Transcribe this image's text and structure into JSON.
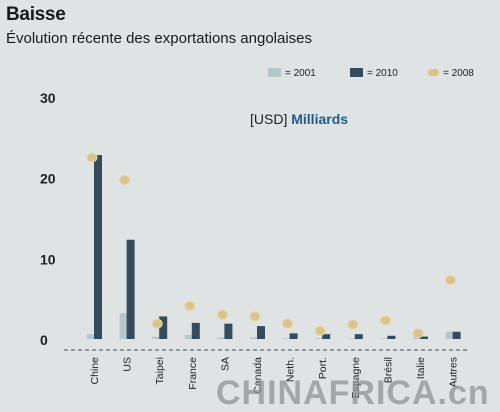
{
  "header": {
    "title": "Baisse",
    "subtitle": "Évolution récente des exportations angolaises"
  },
  "unit_label": {
    "prefix": "[USD]",
    "emphasis": "Milliards"
  },
  "watermark": {
    "text": "CHINAFRICA.cn"
  },
  "colors": {
    "background": "#dfe3e4",
    "s2001": "#b6c6cd",
    "s2010": "#344c5c",
    "s2008": "#dcc488",
    "accent": "#1f5d8a"
  },
  "chart_data": {
    "type": "bar",
    "title": "Baisse",
    "subtitle": "Évolution récente des exportations angolaises",
    "unit": "[USD] Milliards",
    "categories": [
      "Chine",
      "US",
      "Taipei",
      "France",
      "SA",
      "Canada",
      "Neth.",
      "Port.",
      "Espagne",
      "Brésil",
      "Italie",
      "Autres"
    ],
    "yticks": [
      "0",
      "10",
      "20",
      "30"
    ],
    "ylim": [
      0,
      30
    ],
    "legend_position": "top-right",
    "series": [
      {
        "name": "= 2001",
        "type": "bar",
        "color": "#b6c6cd",
        "values": [
          0.6,
          3.2,
          0.3,
          0.5,
          0.2,
          0.2,
          0.1,
          0.1,
          0.1,
          0.1,
          0.2,
          0.9
        ]
      },
      {
        "name": "= 2010",
        "type": "bar",
        "color": "#344c5c",
        "values": [
          22.8,
          12.3,
          2.8,
          2.0,
          1.9,
          1.6,
          0.7,
          0.6,
          0.6,
          0.4,
          0.3,
          0.9
        ]
      },
      {
        "name": "= 2008",
        "type": "dot",
        "color": "#dcc488",
        "values": [
          22.5,
          19.7,
          1.9,
          4.1,
          3.0,
          2.8,
          1.9,
          1.0,
          1.8,
          2.3,
          0.7,
          7.3
        ]
      }
    ]
  }
}
